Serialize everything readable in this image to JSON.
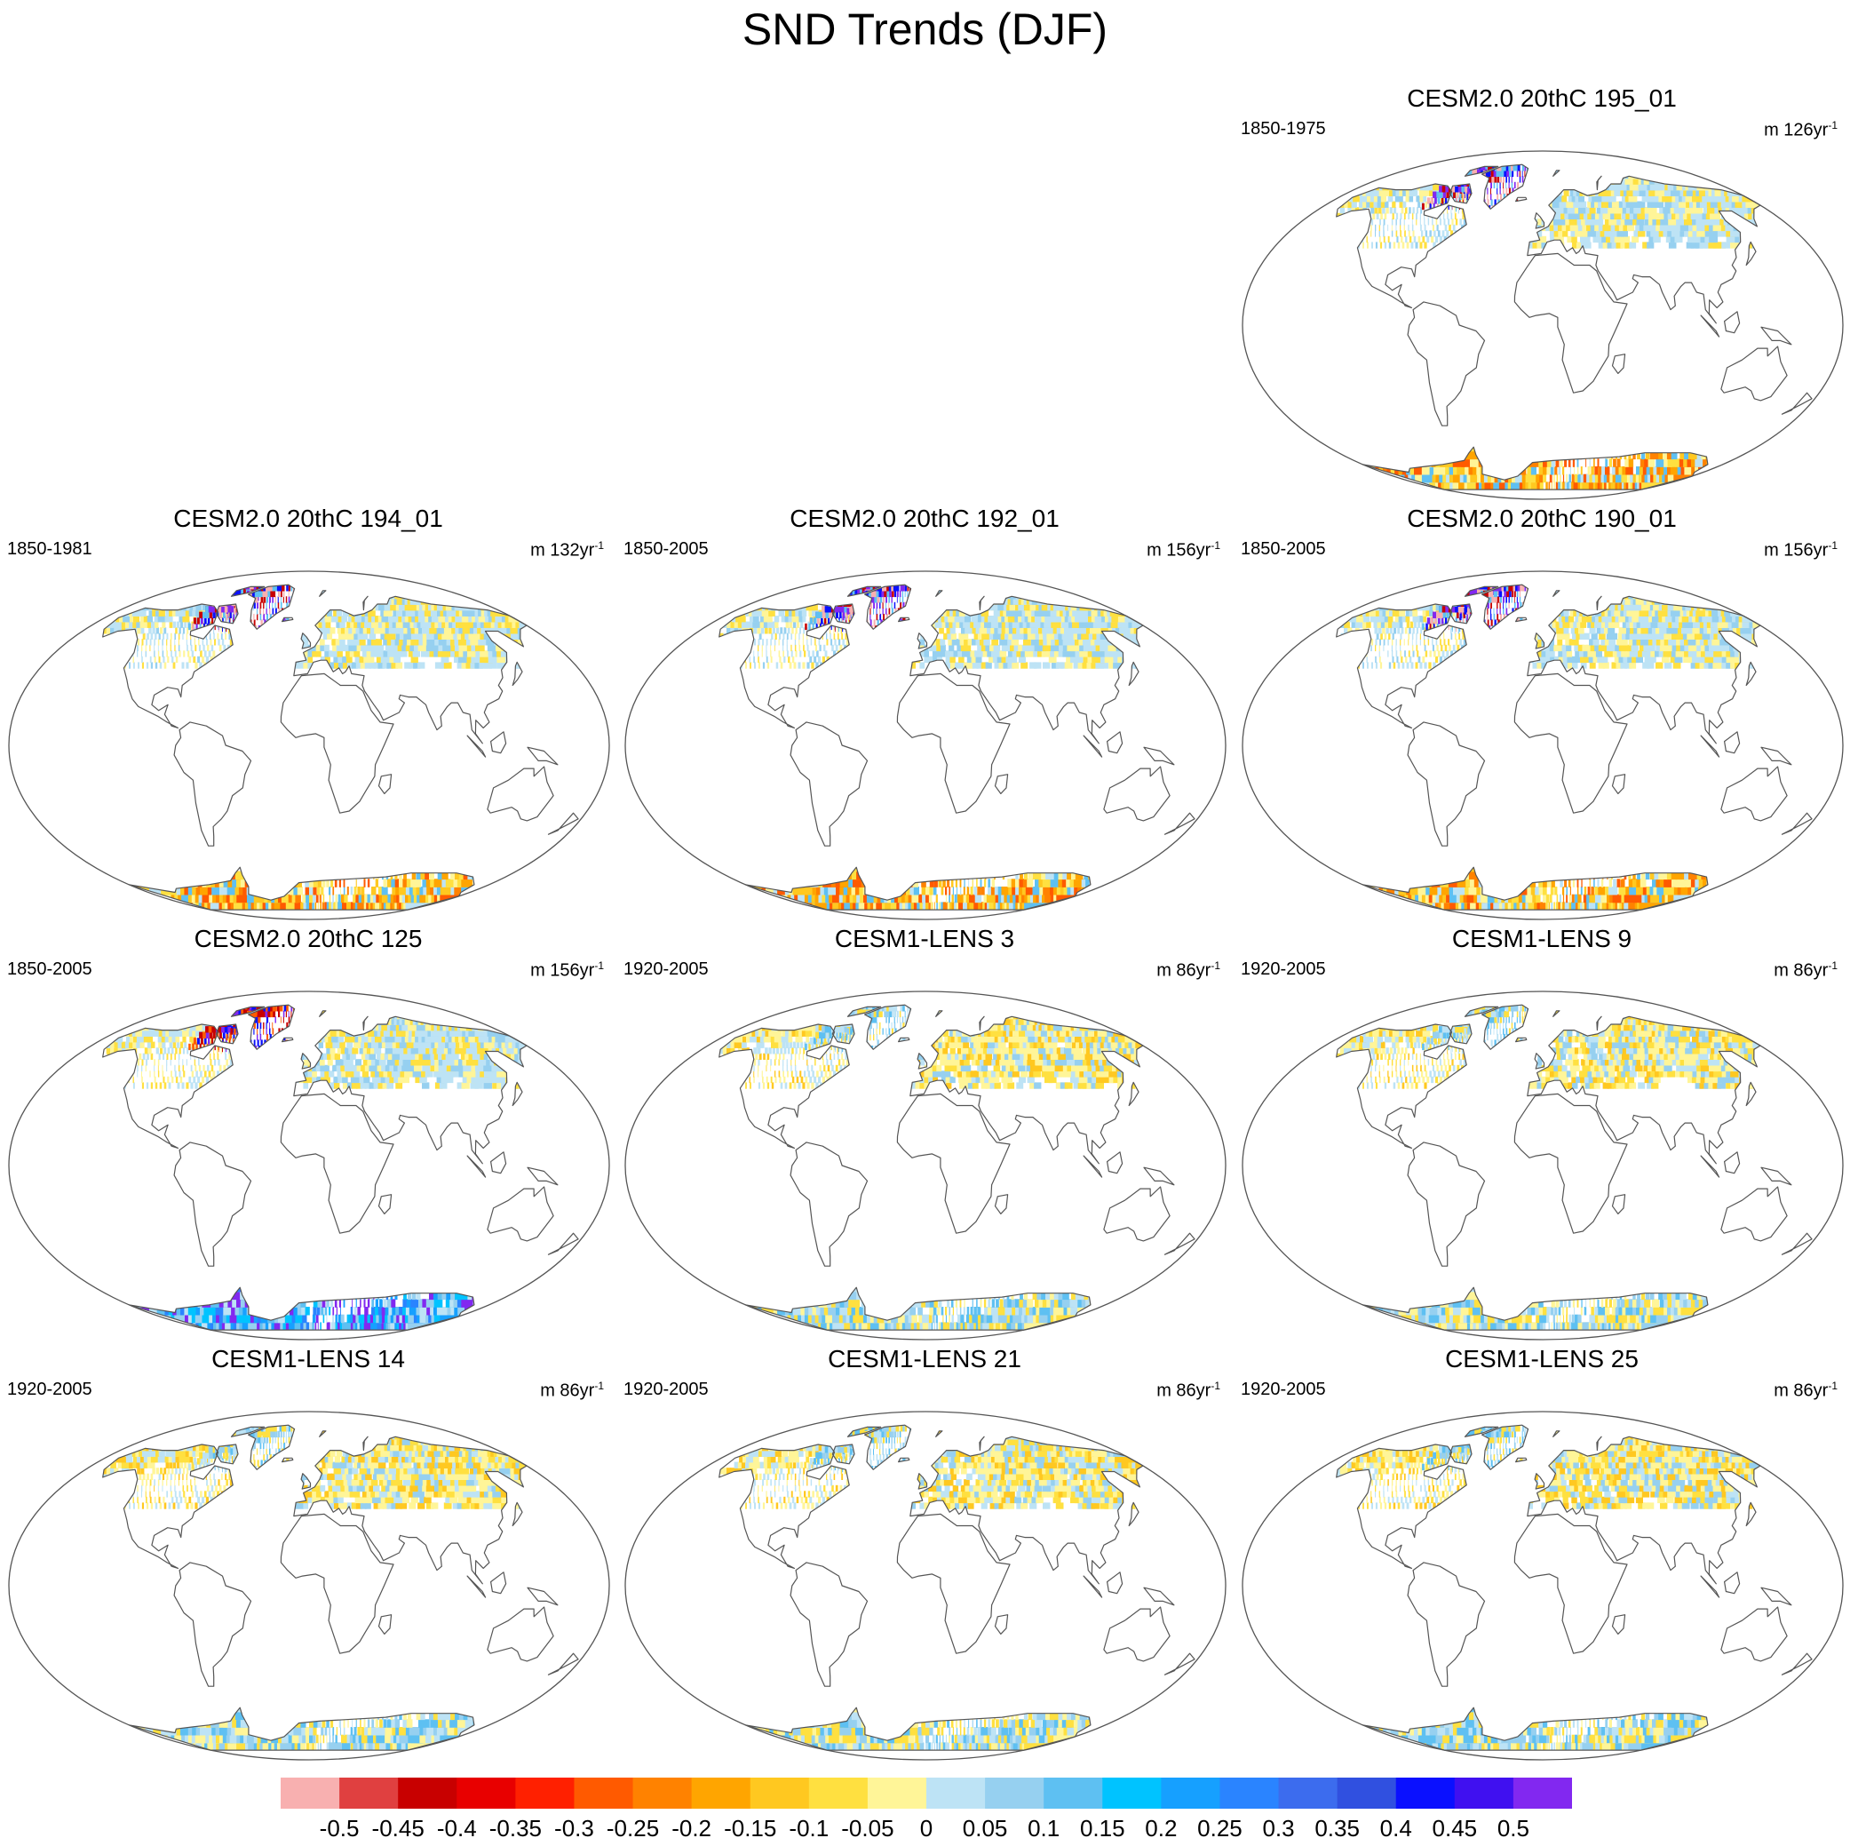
{
  "title": "SND Trends (DJF)",
  "panels": [
    {
      "title": "CESM2.0 20thC 195_01",
      "period": "1850-1975",
      "units_prefix": "m 126yr",
      "units_exp": "-1",
      "pattern": "cesm2"
    },
    {
      "title": "CESM2.0 20thC 194_01",
      "period": "1850-1981",
      "units_prefix": "m 132yr",
      "units_exp": "-1",
      "pattern": "cesm2"
    },
    {
      "title": "CESM2.0 20thC 192_01",
      "period": "1850-2005",
      "units_prefix": "m 156yr",
      "units_exp": "-1",
      "pattern": "cesm2"
    },
    {
      "title": "CESM2.0 20thC 190_01",
      "period": "1850-2005",
      "units_prefix": "m 156yr",
      "units_exp": "-1",
      "pattern": "cesm2"
    },
    {
      "title": "CESM2.0 20thC 125",
      "period": "1850-2005",
      "units_prefix": "m 156yr",
      "units_exp": "-1",
      "pattern": "cesm2_125"
    },
    {
      "title": "CESM1-LENS 3",
      "period": "1920-2005",
      "units_prefix": "m 86yr",
      "units_exp": "-1",
      "pattern": "lens"
    },
    {
      "title": "CESM1-LENS 9",
      "period": "1920-2005",
      "units_prefix": "m 86yr",
      "units_exp": "-1",
      "pattern": "lens"
    },
    {
      "title": "CESM1-LENS 14",
      "period": "1920-2005",
      "units_prefix": "m 86yr",
      "units_exp": "-1",
      "pattern": "lens"
    },
    {
      "title": "CESM1-LENS 21",
      "period": "1920-2005",
      "units_prefix": "m 86yr",
      "units_exp": "-1",
      "pattern": "lens"
    },
    {
      "title": "CESM1-LENS 25",
      "period": "1920-2005",
      "units_prefix": "m 86yr",
      "units_exp": "-1",
      "pattern": "lens"
    }
  ],
  "colorbar": {
    "labels": [
      "-0.5",
      "-0.45",
      "-0.4",
      "-0.35",
      "-0.3",
      "-0.25",
      "-0.2",
      "-0.15",
      "-0.1",
      "-0.05",
      "0",
      "0.05",
      "0.1",
      "0.15",
      "0.2",
      "0.25",
      "0.3",
      "0.35",
      "0.4",
      "0.45",
      "0.5"
    ],
    "colors": [
      "#f8b0b0",
      "#e04040",
      "#c80000",
      "#e80000",
      "#ff2000",
      "#ff5a00",
      "#ff8200",
      "#ffa500",
      "#ffc820",
      "#ffe040",
      "#fff598",
      "#bde3f5",
      "#96d0f0",
      "#5ec0f2",
      "#00c3ff",
      "#16a0ff",
      "#2a84ff",
      "#3c6cee",
      "#3050e0",
      "#0a10ff",
      "#4010f0",
      "#8228f0"
    ]
  }
}
